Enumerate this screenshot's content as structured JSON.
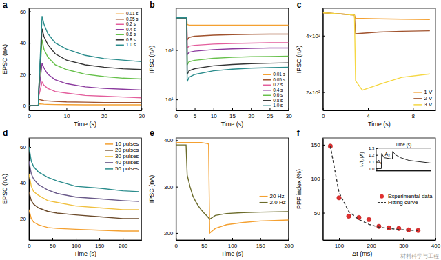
{
  "chart_data": [
    {
      "type": "line",
      "title": "a",
      "x_label": "Time (s)",
      "y_label": "EPSC (nA)",
      "x": [
        0,
        2.5,
        2.6,
        3.5,
        4,
        5,
        7,
        10,
        15,
        20,
        25,
        30
      ],
      "xlim": [
        0,
        30
      ],
      "xticks": [
        0,
        10,
        20,
        30
      ],
      "ylim": [
        -3,
        62
      ],
      "yticks": [
        0,
        20,
        40,
        60
      ],
      "legend": "top-right",
      "series": [
        {
          "name": "0.01 s",
          "color": "#f4a030",
          "values": [
            0,
            0,
            1.2,
            1,
            0.9,
            0.8,
            0.7,
            0.6,
            0.5,
            0.5,
            0.5,
            0.5
          ]
        },
        {
          "name": "0.05 s",
          "color": "#a0522d",
          "values": [
            0,
            0,
            4,
            3.5,
            3.2,
            3,
            2.7,
            2.4,
            2.2,
            2,
            2,
            2
          ]
        },
        {
          "name": "0.2 s",
          "color": "#e35d9c",
          "values": [
            0,
            0,
            6,
            15,
            13,
            11,
            9,
            8,
            6.5,
            6,
            5.5,
            5
          ]
        },
        {
          "name": "0.4 s",
          "color": "#8b3a9e",
          "values": [
            0,
            0,
            8,
            27,
            24,
            20,
            16.5,
            14,
            12,
            11,
            10.5,
            10
          ]
        },
        {
          "name": "0.6 s",
          "color": "#66c04a",
          "values": [
            0,
            0,
            9,
            42,
            36,
            31,
            26,
            23,
            20,
            18.5,
            17.5,
            17
          ]
        },
        {
          "name": "0.8 s",
          "color": "#333333",
          "values": [
            0,
            0,
            10,
            49,
            44,
            39,
            33,
            29,
            26,
            24.5,
            23.5,
            23
          ]
        },
        {
          "name": "1.0 s",
          "color": "#2a8c8c",
          "values": [
            0,
            0,
            10,
            57,
            52,
            46,
            40,
            36,
            32,
            30,
            29,
            28
          ]
        }
      ]
    },
    {
      "type": "line",
      "title": "b",
      "x_label": "Time (s)",
      "y_label": "IPSC (nA)",
      "log": "y",
      "x": [
        0,
        2.9,
        3.0,
        3.5,
        5,
        10,
        15,
        20,
        25,
        30
      ],
      "xlim": [
        0,
        30
      ],
      "xticks": [
        0,
        5,
        10,
        15,
        20,
        25,
        30
      ],
      "ylim": [
        6,
        700
      ],
      "yticks": [
        {
          "value": 10,
          "label": "10¹"
        },
        {
          "value": 100,
          "label": "10²"
        }
      ],
      "legend": "bottom-right",
      "series": [
        {
          "name": "0.01 s",
          "color": "#f4a030",
          "values": [
            450,
            450,
            330,
            320,
            320,
            320,
            320,
            320,
            320,
            320
          ]
        },
        {
          "name": "0.05 s",
          "color": "#a0522d",
          "values": [
            450,
            450,
            160,
            180,
            190,
            200,
            205,
            208,
            210,
            210
          ]
        },
        {
          "name": "0.2 s",
          "color": "#e35d9c",
          "values": [
            450,
            450,
            110,
            120,
            125,
            132,
            136,
            138,
            140,
            140
          ]
        },
        {
          "name": "0.4 s",
          "color": "#8b3a9e",
          "values": [
            450,
            450,
            80,
            90,
            95,
            102,
            106,
            108,
            110,
            110
          ]
        },
        {
          "name": "0.6 s",
          "color": "#66c04a",
          "values": [
            450,
            450,
            50,
            58,
            62,
            68,
            71,
            73,
            74,
            75
          ]
        },
        {
          "name": "0.8 s",
          "color": "#333333",
          "values": [
            450,
            450,
            32,
            38,
            42,
            48,
            51,
            53,
            54,
            55
          ]
        },
        {
          "name": "1.0 s",
          "color": "#2a8c8c",
          "values": [
            450,
            450,
            23,
            28,
            32,
            38,
            41,
            43,
            44,
            45
          ]
        }
      ]
    },
    {
      "type": "line",
      "title": "c",
      "x_label": "Time (s)",
      "y_label": "IPSC (nA)",
      "log": "y",
      "x": [
        0,
        1,
        2,
        2.8,
        2.9,
        3.5,
        5,
        7,
        9.5
      ],
      "xlim": [
        0,
        10
      ],
      "xticks": [
        0,
        4,
        8
      ],
      "ylim": [
        160,
        560
      ],
      "yticks": [
        {
          "value": 200,
          "label": "2×10²"
        },
        {
          "value": 400,
          "label": "4×10²"
        }
      ],
      "legend": "bottom-right",
      "series": [
        {
          "name": "1 V",
          "color": "#f4a030",
          "values": [
            530,
            525,
            520,
            515,
            495,
            495,
            492,
            490,
            488
          ]
        },
        {
          "name": "2 V",
          "color": "#a0522d",
          "values": [
            530,
            525,
            520,
            515,
            410,
            412,
            418,
            422,
            425
          ]
        },
        {
          "name": "3 V",
          "color": "#f5d742",
          "values": [
            530,
            525,
            520,
            515,
            230,
            205,
            220,
            240,
            250
          ]
        }
      ]
    },
    {
      "type": "line",
      "title": "d",
      "x_label": "Time (s)",
      "y_label": "EPSC (nA)",
      "x": [
        0,
        5,
        10,
        20,
        40,
        60,
        100,
        150,
        200,
        235
      ],
      "xlim": [
        0,
        240
      ],
      "xticks": [
        0,
        50,
        100,
        150,
        200
      ],
      "ylim": [
        8,
        65
      ],
      "yticks": [
        20,
        40,
        60
      ],
      "legend": "top-right",
      "series": [
        {
          "name": "10 pulses",
          "color": "#f4a030",
          "values": [
            25,
            20,
            18,
            16.5,
            15,
            14.5,
            14,
            13.5,
            13,
            13
          ]
        },
        {
          "name": "20 pulses",
          "color": "#6b4a2a",
          "values": [
            35,
            30,
            28,
            26,
            24,
            23,
            22,
            21,
            20,
            20
          ]
        },
        {
          "name": "30 pulses",
          "color": "#f0c040",
          "values": [
            45,
            38,
            35,
            33,
            30,
            29,
            27,
            26,
            25,
            25
          ]
        },
        {
          "name": "40 pulses",
          "color": "#6a5a8a",
          "values": [
            52,
            45,
            42,
            39,
            36,
            34,
            32,
            31,
            30,
            29.5
          ]
        },
        {
          "name": "50 pulses",
          "color": "#2a8c8c",
          "values": [
            60,
            52,
            49,
            46,
            43,
            41,
            38,
            37,
            35.5,
            35
          ]
        }
      ]
    },
    {
      "type": "line",
      "title": "e",
      "x_label": "Time (s)",
      "y_label": "IPSC (nA)",
      "x": [
        0,
        18,
        20,
        25,
        30,
        35,
        40,
        45,
        50,
        55,
        58,
        60,
        70,
        90,
        120,
        150,
        200
      ],
      "xlim": [
        0,
        200
      ],
      "xticks": [
        0,
        50,
        100,
        150,
        200
      ],
      "ylim": [
        185,
        405
      ],
      "yticks": [
        200,
        300,
        400
      ],
      "legend": "right",
      "series": [
        {
          "name": "20 Hz",
          "color": "#f4a030",
          "values": [
            395,
            395,
            395,
            395,
            395,
            395,
            395,
            395,
            394,
            393,
            392,
            200,
            210,
            218,
            223,
            226,
            228
          ]
        },
        {
          "name": "2.0 Hz",
          "color": "#6b6b2a",
          "values": [
            390,
            390,
            325,
            300,
            280,
            268,
            258,
            250,
            243,
            237,
            233,
            230,
            238,
            242,
            244,
            245,
            246
          ]
        }
      ]
    },
    {
      "type": "scatter",
      "title": "f",
      "x_label": "Δt (ms)",
      "y_label": "PPF index (%)",
      "x": [
        73,
        100,
        130,
        162,
        193,
        224,
        255,
        286,
        316,
        346
      ],
      "xlim": [
        50,
        400
      ],
      "xticks": [
        100,
        200,
        300,
        400
      ],
      "ylim": [
        10,
        160
      ],
      "yticks": [
        50,
        100,
        150
      ],
      "legend": "right",
      "annotations": [
        "材料科学与工程"
      ],
      "series": [
        {
          "name": "Experimental data",
          "type": "scatter",
          "marker": "circle",
          "color": "#e03030",
          "values": [
            148,
            72,
            45,
            43,
            40,
            30,
            28,
            27,
            25,
            24
          ]
        },
        {
          "name": "Fitting curve",
          "type": "line",
          "line_style": "dashed",
          "color": "#333333",
          "values": [
            148,
            80,
            52,
            40,
            33,
            29,
            27,
            25.5,
            24.5,
            24
          ]
        }
      ]
    },
    {
      "type": "line",
      "x_label": "Time (s)",
      "y_label": "Iₙ/I₀ (A)",
      "tick_labels": "y",
      "x": [
        0,
        1,
        1.05,
        1.5,
        3,
        3.05,
        3.6,
        4.5,
        6,
        8,
        10
      ],
      "xlim": [
        0,
        10
      ],
      "ylim": [
        0.97,
        1.3
      ],
      "yticks": [
        {
          "value": 1.0,
          "label": "1.0"
        },
        {
          "value": 1.1,
          "label": "1.1"
        },
        {
          "value": 1.2,
          "label": "1.2"
        },
        {
          "value": 1.3,
          "label": "1.3"
        }
      ],
      "annotations": [
        "A₁",
        "A₂"
      ],
      "series": [
        {
          "color": "#222222",
          "values": [
            1.0,
            1.0,
            1.22,
            1.16,
            1.14,
            1.25,
            1.2,
            1.16,
            1.12,
            1.1,
            1.08
          ]
        }
      ]
    }
  ]
}
